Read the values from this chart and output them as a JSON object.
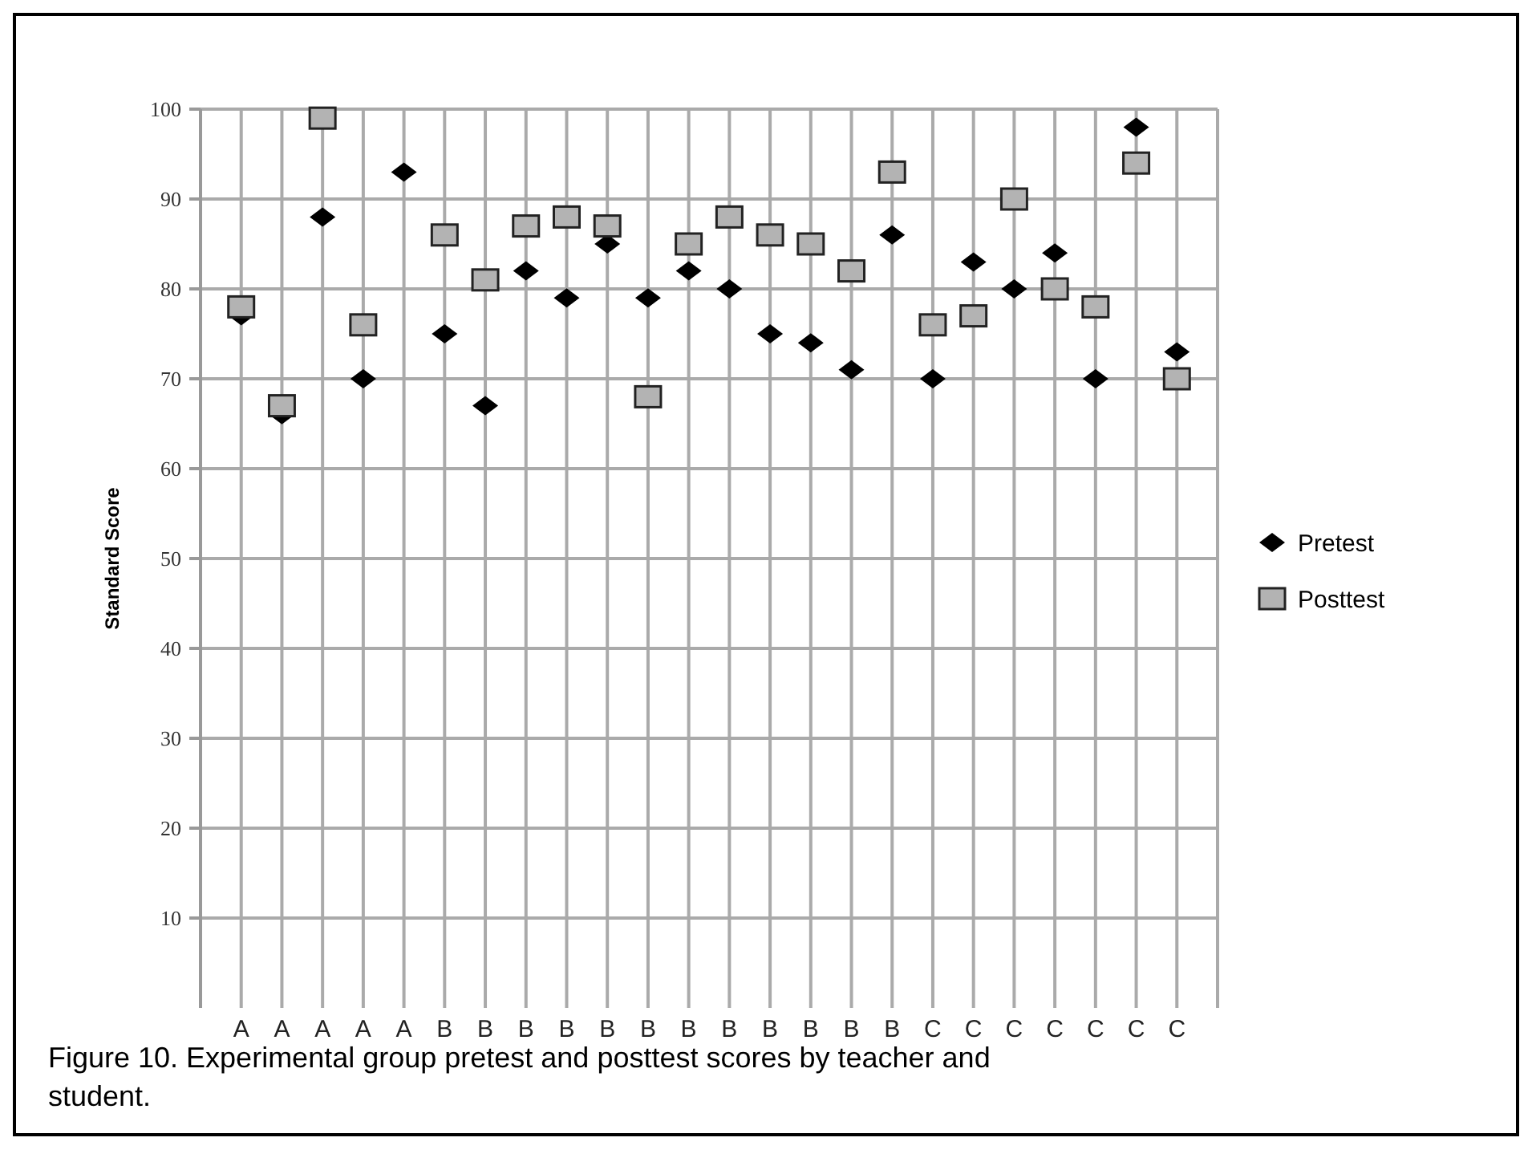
{
  "chart_data": {
    "type": "scatter",
    "ylabel": "Standard Score",
    "categories": [
      "A",
      "A",
      "A",
      "A",
      "A",
      "B",
      "B",
      "B",
      "B",
      "B",
      "B",
      "B",
      "B",
      "B",
      "B",
      "B",
      "B",
      "C",
      "C",
      "C",
      "C",
      "C",
      "C",
      "C"
    ],
    "series": [
      {
        "name": "Pretest",
        "color": "#000000",
        "marker": "diamond",
        "values": [
          77,
          66,
          88,
          70,
          93,
          75,
          67,
          82,
          79,
          85,
          79,
          82,
          80,
          75,
          74,
          71,
          86,
          70,
          83,
          80,
          84,
          70,
          98,
          73
        ]
      },
      {
        "name": "Posttest",
        "color": "#b3b3b3",
        "marker": "square",
        "values": [
          78,
          67,
          99,
          76,
          null,
          86,
          81,
          87,
          88,
          87,
          68,
          85,
          88,
          86,
          85,
          82,
          93,
          76,
          77,
          90,
          80,
          78,
          94,
          70
        ]
      }
    ],
    "ylim": [
      0,
      100
    ],
    "yticks": [
      10,
      20,
      30,
      40,
      50,
      60,
      70,
      80,
      90,
      100
    ],
    "grid": true,
    "legend": "right",
    "annotations": [
      "Figure 10. Experimental group pretest and posttest scores by teacher and student."
    ]
  }
}
